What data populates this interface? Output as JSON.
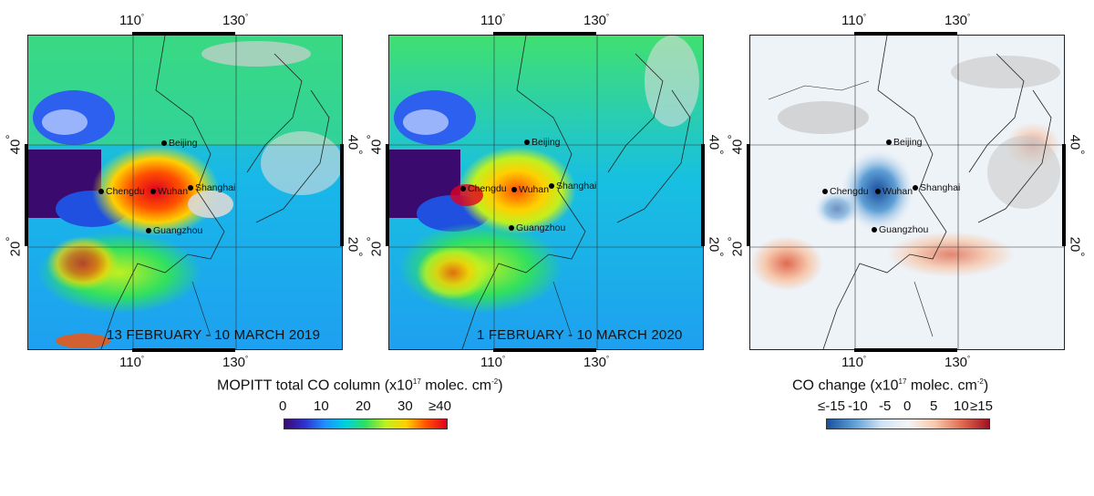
{
  "maps": [
    {
      "id": "2019",
      "period_label": "13 FEBRUARY - 10 MARCH 2019"
    },
    {
      "id": "2020",
      "period_label": "1 FEBRUARY - 10 MARCH 2020"
    },
    {
      "id": "change",
      "period_label": ""
    }
  ],
  "lon_ticks": [
    "110",
    "130"
  ],
  "lat_ticks": [
    "40",
    "20"
  ],
  "degree_symbol": "°",
  "cities": [
    "Beijing",
    "Chengdu",
    "Wuhan",
    "Shanghai",
    "Guangzhou"
  ],
  "colorbar_total": {
    "title_prefix": "MOPITT total CO column (x10",
    "title_exp": "17",
    "title_suffix": " molec. cm",
    "title_exp2": "-2",
    "title_end": ")",
    "labels": [
      "0",
      "10",
      "20",
      "30",
      "≥40"
    ]
  },
  "colorbar_change": {
    "title_prefix": "CO change (x10",
    "title_exp": "17",
    "title_suffix": " molec. cm",
    "title_exp2": "-2",
    "title_end": ")",
    "labels": [
      "≤-15",
      "-10",
      "-5",
      "0",
      "5",
      "10",
      "≥15"
    ]
  },
  "colors": {
    "rainbow": [
      "#3a0a6e",
      "#3030d0",
      "#1e90ff",
      "#00d0e0",
      "#30e060",
      "#c0f020",
      "#ffd000",
      "#ff5000",
      "#e00020"
    ],
    "diverging": [
      "#1a4f9c",
      "#5e9fd6",
      "#cfe2f3",
      "#f5f5f5",
      "#f6c9ae",
      "#e06a50",
      "#a01020"
    ]
  }
}
